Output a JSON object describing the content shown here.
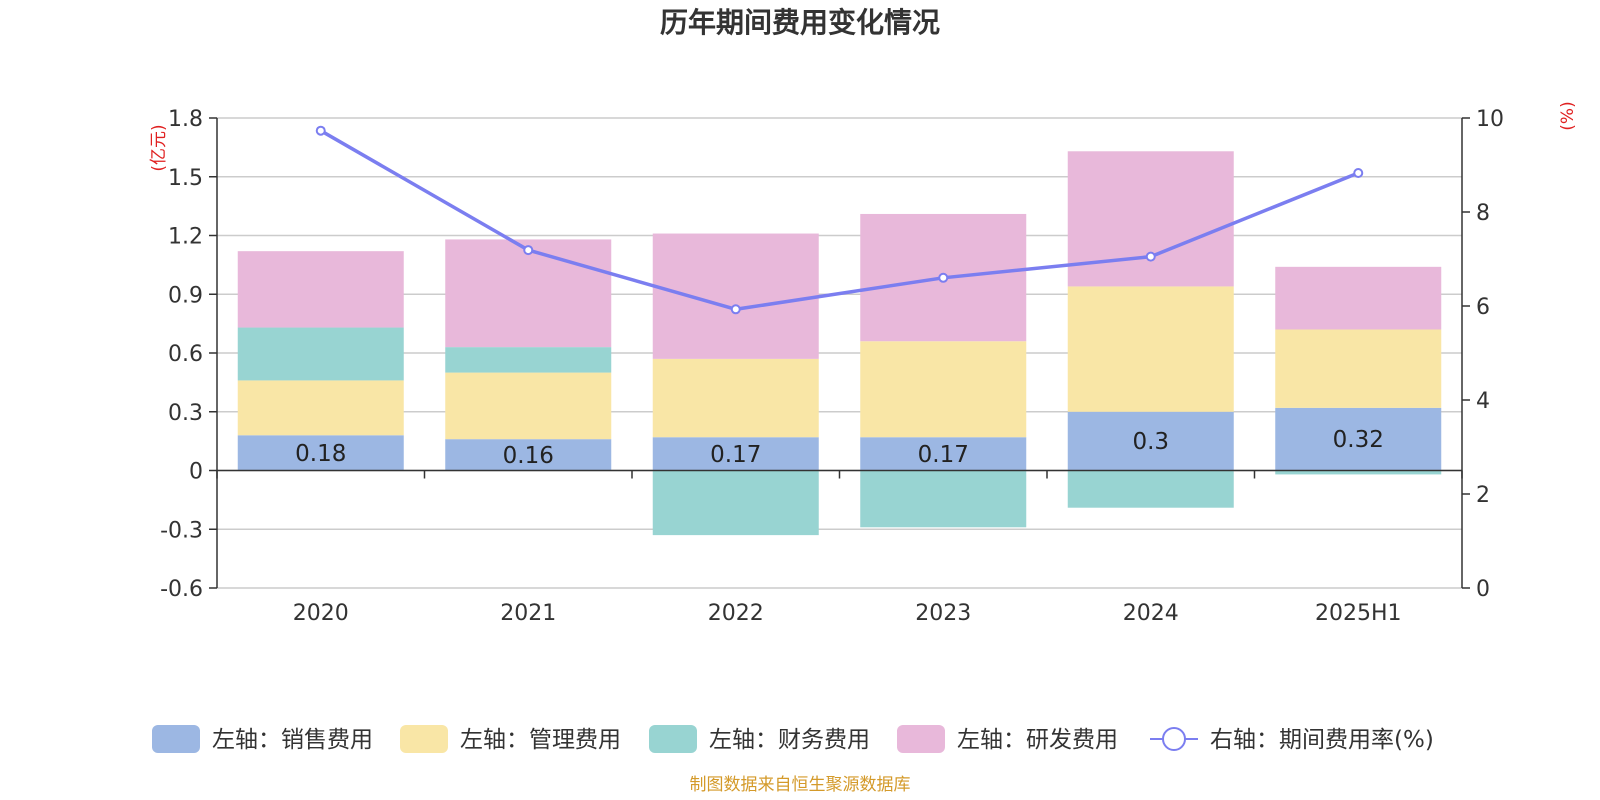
{
  "chart_data": {
    "type": "bar",
    "title": "历年期间费用变化情况",
    "categories": [
      "2020",
      "2021",
      "2022",
      "2023",
      "2024",
      "2025H1"
    ],
    "left_axis": {
      "unit": "(亿元)",
      "ylim": [
        -0.6,
        1.8
      ],
      "ticks": [
        "1.8",
        "1.5",
        "1.2",
        "0.9",
        "0.6",
        "0.3",
        "0",
        "-0.3",
        "-0.6"
      ]
    },
    "right_axis": {
      "unit": "(%)",
      "ylim": [
        0,
        10
      ],
      "ticks": [
        "10",
        "8",
        "6",
        "4",
        "2",
        "0"
      ]
    },
    "grid": true,
    "stacked": true,
    "series": [
      {
        "name": "左轴：销售费用",
        "color": "#9cb7e3",
        "values": [
          0.18,
          0.16,
          0.17,
          0.17,
          0.3,
          0.32
        ],
        "labels": [
          "0.18",
          "0.16",
          "0.17",
          "0.17",
          "0.3",
          "0.32"
        ]
      },
      {
        "name": "左轴：管理费用",
        "color": "#f9e6a6",
        "values": [
          0.28,
          0.34,
          0.4,
          0.49,
          0.64,
          0.4
        ]
      },
      {
        "name": "左轴：财务费用",
        "color": "#98d4d2",
        "values": [
          0.27,
          0.13,
          -0.33,
          -0.29,
          -0.19,
          -0.02
        ]
      },
      {
        "name": "左轴：研发费用",
        "color": "#e8b8da",
        "values": [
          0.39,
          0.55,
          0.64,
          0.65,
          0.69,
          0.32
        ]
      },
      {
        "name": "右轴：期间费用率(%)",
        "type": "line",
        "axis": "right",
        "color": "#7b7ef0",
        "values": [
          9.73,
          7.19,
          5.93,
          6.6,
          7.05,
          8.83
        ]
      }
    ],
    "legend_position": "bottom"
  },
  "source_note": "制图数据来自恒生聚源数据库"
}
